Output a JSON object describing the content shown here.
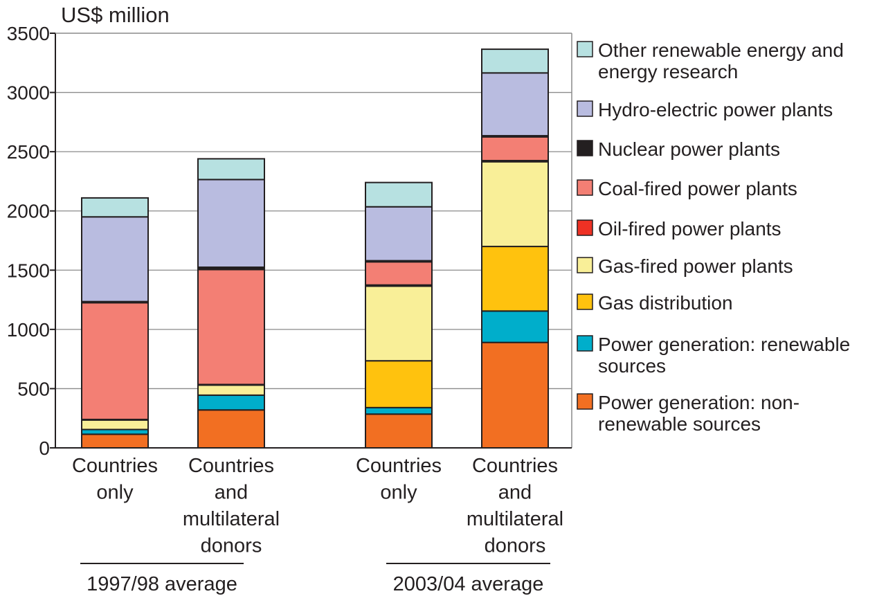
{
  "chart_data": {
    "type": "bar",
    "stacked": true,
    "title": "",
    "ylabel": "US$ million",
    "xlabel": "",
    "ylim": [
      0,
      3500
    ],
    "yticks": [
      0,
      500,
      1000,
      1500,
      2000,
      2500,
      3000,
      3500
    ],
    "grid": "horizontal",
    "legend_position": "right",
    "categories": [
      [
        "Countries",
        "only"
      ],
      [
        "Countries",
        "and",
        "multilateral",
        "donors"
      ],
      [
        "Countries",
        "only"
      ],
      [
        "Countries",
        "and",
        "multilateral",
        "donors"
      ]
    ],
    "groups": [
      {
        "label": "1997/98 average",
        "categories": [
          0,
          1
        ]
      },
      {
        "label": "2003/04 average",
        "categories": [
          2,
          3
        ]
      }
    ],
    "series": [
      {
        "name": [
          "Power generation: non-",
          "renewable sources"
        ],
        "color": "#f26f22",
        "values": [
          115,
          320,
          285,
          890
        ]
      },
      {
        "name": [
          "Power generation: renewable",
          "sources"
        ],
        "color": "#00aecb",
        "values": [
          40,
          125,
          55,
          265
        ]
      },
      {
        "name": [
          "Gas distribution"
        ],
        "color": "#ffc20e",
        "values": [
          0,
          0,
          395,
          545
        ]
      },
      {
        "name": [
          "Gas-fired power plants"
        ],
        "color": "#f9ef98",
        "values": [
          80,
          85,
          630,
          715
        ]
      },
      {
        "name": [
          "Oil-fired power plants"
        ],
        "color": "#ee3124",
        "values": [
          5,
          5,
          10,
          10
        ]
      },
      {
        "name": [
          "Coal-fired power plants"
        ],
        "color": "#f37f74",
        "values": [
          985,
          970,
          195,
          200
        ]
      },
      {
        "name": [
          "Nuclear power plants"
        ],
        "color": "#231f20",
        "values": [
          10,
          20,
          10,
          10
        ]
      },
      {
        "name": [
          "Hydro-electric power plants"
        ],
        "color": "#b9bce0",
        "values": [
          715,
          740,
          455,
          530
        ]
      },
      {
        "name": [
          "Other renewable energy and",
          "energy research"
        ],
        "color": "#b7e1e1",
        "values": [
          160,
          175,
          205,
          200
        ]
      }
    ]
  }
}
